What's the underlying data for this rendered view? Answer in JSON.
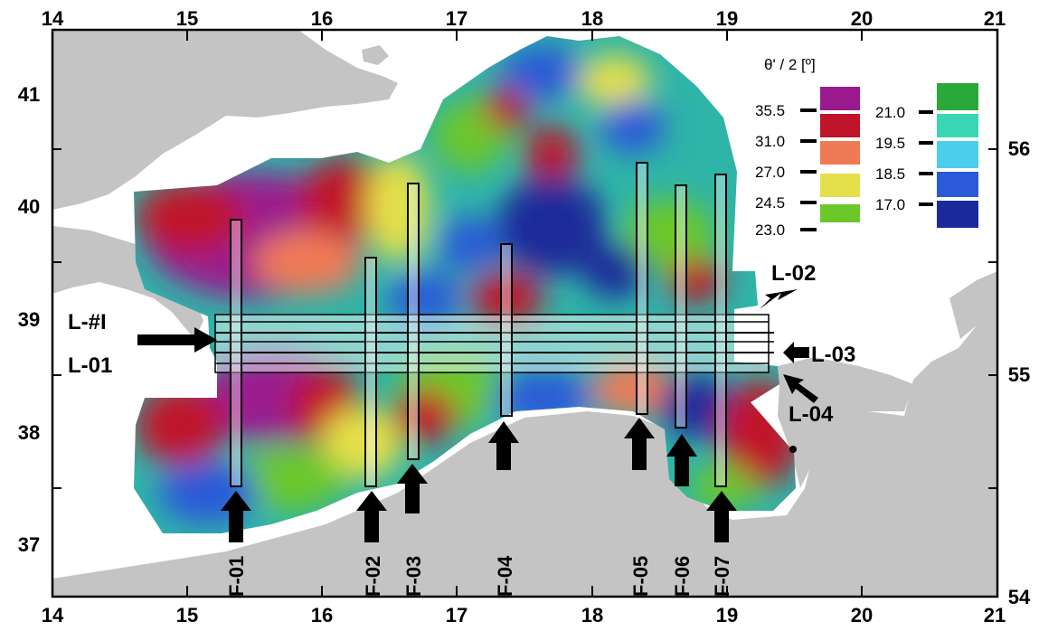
{
  "map": {
    "x_axis": {
      "ticks": [
        "14",
        "15",
        "16",
        "17",
        "18",
        "19",
        "20",
        "21"
      ]
    },
    "y_axis_left": {
      "ticks": [
        "37",
        "38",
        "39",
        "40",
        "41"
      ]
    },
    "y_axis_right": {
      "ticks": [
        "54",
        "55",
        "56"
      ]
    }
  },
  "legend": {
    "title": "θ' / 2 [º]",
    "left_column": [
      {
        "label": "35.5",
        "color": "#9a1a8e"
      },
      {
        "label": "31.0",
        "color": "#c0142a"
      },
      {
        "label": "27.0",
        "color": "#f07a56"
      },
      {
        "label": "24.5",
        "color": "#e4e04a"
      },
      {
        "label": "23.0",
        "color": "#6cc82a"
      }
    ],
    "right_column": [
      {
        "label": "21.0",
        "color": "#2aa83a"
      },
      {
        "label": "19.5",
        "color": "#3ad6b4"
      },
      {
        "label": "18.5",
        "color": "#4ad0ec"
      },
      {
        "label": "17.0",
        "color": "#2a5ad8"
      },
      {
        "label": "",
        "color": "#1a2a9a"
      }
    ]
  },
  "lines": [
    {
      "id": "L-#I"
    },
    {
      "id": "L-01"
    },
    {
      "id": "L-02"
    },
    {
      "id": "L-03"
    },
    {
      "id": "L-04"
    }
  ],
  "faults": [
    {
      "id": "F-01"
    },
    {
      "id": "F-02"
    },
    {
      "id": "F-03"
    },
    {
      "id": "F-04"
    },
    {
      "id": "F-05"
    },
    {
      "id": "F-06"
    },
    {
      "id": "F-07"
    }
  ],
  "colors": {
    "land": "#c4c4c4",
    "sea": "#ffffff",
    "frame": "#000000"
  }
}
